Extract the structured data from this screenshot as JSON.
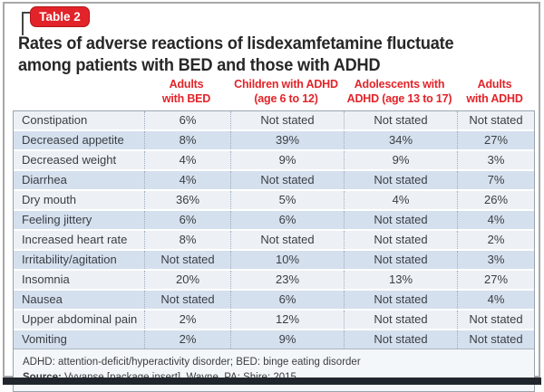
{
  "badge": "Table 2",
  "title": {
    "line1": "Rates of adverse reactions of lisdexamfetamine fluctuate",
    "line2": "among patients with BED and those with ADHD"
  },
  "colors": {
    "accent_red": "#e2242a",
    "row_light": "#edf1f6",
    "row_blue": "#d5e0ee",
    "footer_bg": "#f3f7fa",
    "shadow_bar": "#20262c"
  },
  "table": {
    "columns": [
      {
        "line1": "Adults",
        "line2": "with BED"
      },
      {
        "line1": "Children with ADHD",
        "line2": "(age 6 to 12)"
      },
      {
        "line1": "Adolescents with",
        "line2": "ADHD (age 13 to 17)"
      },
      {
        "line1": "Adults",
        "line2": "with ADHD"
      }
    ],
    "rows": [
      {
        "label": "Constipation",
        "values": [
          "6%",
          "Not stated",
          "Not stated",
          "Not stated"
        ]
      },
      {
        "label": "Decreased appetite",
        "values": [
          "8%",
          "39%",
          "34%",
          "27%"
        ]
      },
      {
        "label": "Decreased weight",
        "values": [
          "4%",
          "9%",
          "9%",
          "3%"
        ]
      },
      {
        "label": "Diarrhea",
        "values": [
          "4%",
          "Not stated",
          "Not stated",
          "7%"
        ]
      },
      {
        "label": "Dry mouth",
        "values": [
          "36%",
          "5%",
          "4%",
          "26%"
        ]
      },
      {
        "label": "Feeling jittery",
        "values": [
          "6%",
          "6%",
          "Not stated",
          "4%"
        ]
      },
      {
        "label": "Increased heart rate",
        "values": [
          "8%",
          "Not stated",
          "Not stated",
          "2%"
        ]
      },
      {
        "label": "Irritability/agitation",
        "values": [
          "Not stated",
          "10%",
          "Not stated",
          "3%"
        ]
      },
      {
        "label": "Insomnia",
        "values": [
          "20%",
          "23%",
          "13%",
          "27%"
        ]
      },
      {
        "label": "Nausea",
        "values": [
          "Not stated",
          "6%",
          "Not stated",
          "4%"
        ]
      },
      {
        "label": "Upper abdominal pain",
        "values": [
          "2%",
          "12%",
          "Not stated",
          "Not stated"
        ]
      },
      {
        "label": "Vomiting",
        "values": [
          "2%",
          "9%",
          "Not stated",
          "Not stated"
        ]
      }
    ]
  },
  "footnotes": {
    "abbreviations": "ADHD: attention-deficit/hyperactivity disorder; BED: binge eating disorder",
    "source_label": "Source:",
    "source_text": " Vyvanse [package insert]. Wayne, PA: Shire; 2015"
  }
}
